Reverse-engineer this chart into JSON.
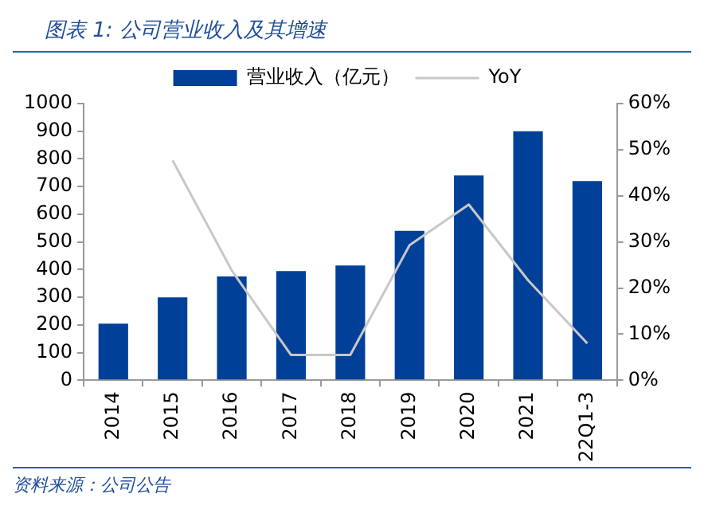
{
  "chart_data": {
    "type": "bar",
    "title": "图表 1:  公司营业收入及其增速",
    "annotations": [
      "资料来源：公司公告"
    ],
    "categories": [
      "2014",
      "2015",
      "2016",
      "2017",
      "2018",
      "2019",
      "2020",
      "2021",
      "22Q1-3"
    ],
    "series": [
      {
        "name": "营业收入（亿元）",
        "color": "#004098",
        "values": [
          205,
          300,
          375,
          395,
          415,
          540,
          740,
          900,
          720
        ]
      },
      {
        "name": "YoY",
        "type": "line",
        "axis": "y2",
        "color": "#c8c8c8",
        "values": [
          null,
          47.7,
          23.8,
          5.5,
          5.5,
          29.3,
          38.1,
          21.7,
          8
        ]
      }
    ],
    "ylim": [
      0,
      1000
    ],
    "yticks": [
      0,
      100,
      200,
      300,
      400,
      500,
      600,
      700,
      800,
      900,
      1000
    ],
    "y2lim": [
      0,
      60
    ],
    "y2ticks": [
      {
        "value": 0,
        "label": "0%"
      },
      {
        "value": 10,
        "label": "10%"
      },
      {
        "value": 20,
        "label": "20%"
      },
      {
        "value": 30,
        "label": "30%"
      },
      {
        "value": 40,
        "label": "40%"
      },
      {
        "value": 50,
        "label": "50%"
      },
      {
        "value": 60,
        "label": "60%"
      }
    ],
    "grid": false,
    "legend": "top",
    "marker": "none"
  }
}
